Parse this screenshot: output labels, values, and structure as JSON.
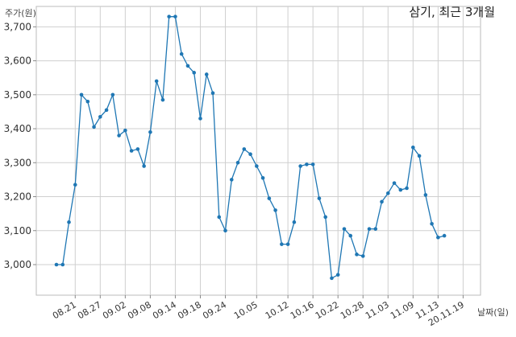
{
  "chart_data": {
    "type": "line",
    "title": "삼기, 최근 3개월",
    "ylabel": "주가(원)",
    "xlabel": "날짜(일)",
    "ylim": [
      2910,
      3760
    ],
    "yticks": [
      3000,
      3100,
      3200,
      3300,
      3400,
      3500,
      3600,
      3700
    ],
    "ytick_labels": [
      "3,000",
      "3,100",
      "3,200",
      "3,300",
      "3,400",
      "3,500",
      "3,600",
      "3,700"
    ],
    "xtick_labels": [
      "08.21",
      "08.27",
      "09.02",
      "09.08",
      "09.14",
      "09.18",
      "09.24",
      "10.05",
      "10.12",
      "10.16",
      "10.22",
      "10.28",
      "11.03",
      "11.09",
      "11.13",
      "20.11.19"
    ],
    "xtick_index": [
      3,
      7,
      11,
      15,
      19,
      23,
      27,
      32,
      37,
      41,
      45,
      49,
      53,
      57,
      61,
      65
    ],
    "grid": true,
    "marker_color": "#1f77b4",
    "series": [
      {
        "values": [
          3000,
          3000,
          3125,
          3235,
          3500,
          3480,
          3405,
          3435,
          3455,
          3500,
          3380,
          3395,
          3335,
          3340,
          3290,
          3390,
          3540,
          3485,
          3730,
          3730,
          3620,
          3585,
          3565,
          3430,
          3560,
          3505,
          3140,
          3100,
          3250,
          3300,
          3340,
          3325,
          3290,
          3255,
          3195,
          3160,
          3060,
          3060,
          3125,
          3290,
          3295,
          3295,
          3195,
          3140,
          2960,
          2970,
          3105,
          3085,
          3030,
          3025,
          3105,
          3105,
          3185,
          3210,
          3240,
          3220,
          3225,
          3345,
          3320,
          3205,
          3120,
          3080,
          3085
        ]
      }
    ]
  }
}
